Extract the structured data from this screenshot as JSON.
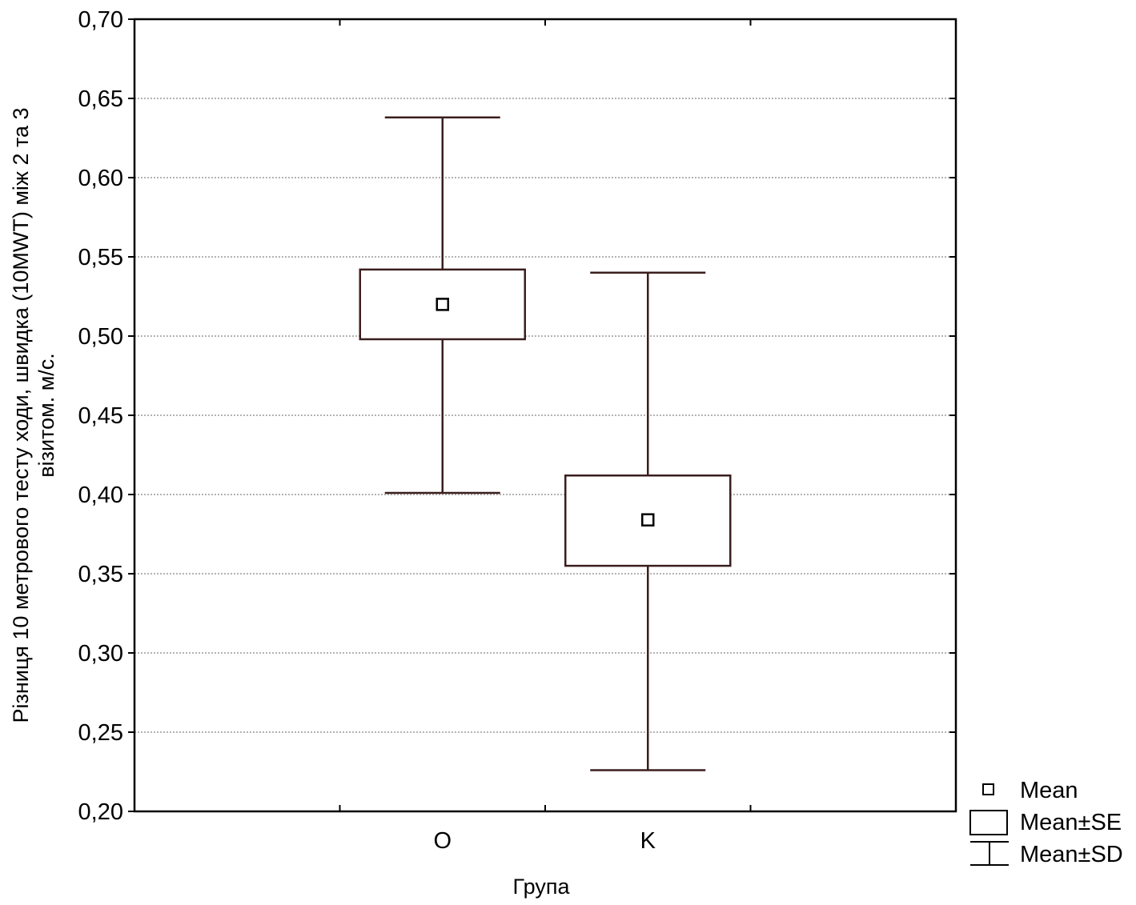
{
  "chart_data": {
    "type": "box",
    "categories": [
      "O",
      "K"
    ],
    "series": [
      {
        "category": "O",
        "mean": 0.52,
        "se_low": 0.498,
        "se_high": 0.542,
        "sd_low": 0.401,
        "sd_high": 0.638
      },
      {
        "category": "K",
        "mean": 0.384,
        "se_low": 0.355,
        "se_high": 0.412,
        "sd_low": 0.226,
        "sd_high": 0.54
      }
    ],
    "xlabel": "Група",
    "ylabel_line1": "Різниця 10 метрового тесту ходи, швидка (10MWT) між 2 та 3",
    "ylabel_line2": "візитом. м/с.",
    "ylim": [
      0.2,
      0.7
    ],
    "yticks": [
      "0,20",
      "0,25",
      "0,30",
      "0,35",
      "0,40",
      "0,45",
      "0,50",
      "0,55",
      "0,60",
      "0,65",
      "0,70"
    ],
    "grid": true,
    "legend_position": "bottom-right",
    "legend": [
      "Mean",
      "Mean±SE",
      "Mean±SD"
    ],
    "colors": {
      "box": "#3b1e1e",
      "frame": "#000000",
      "grid": "#9a9a9a"
    }
  }
}
